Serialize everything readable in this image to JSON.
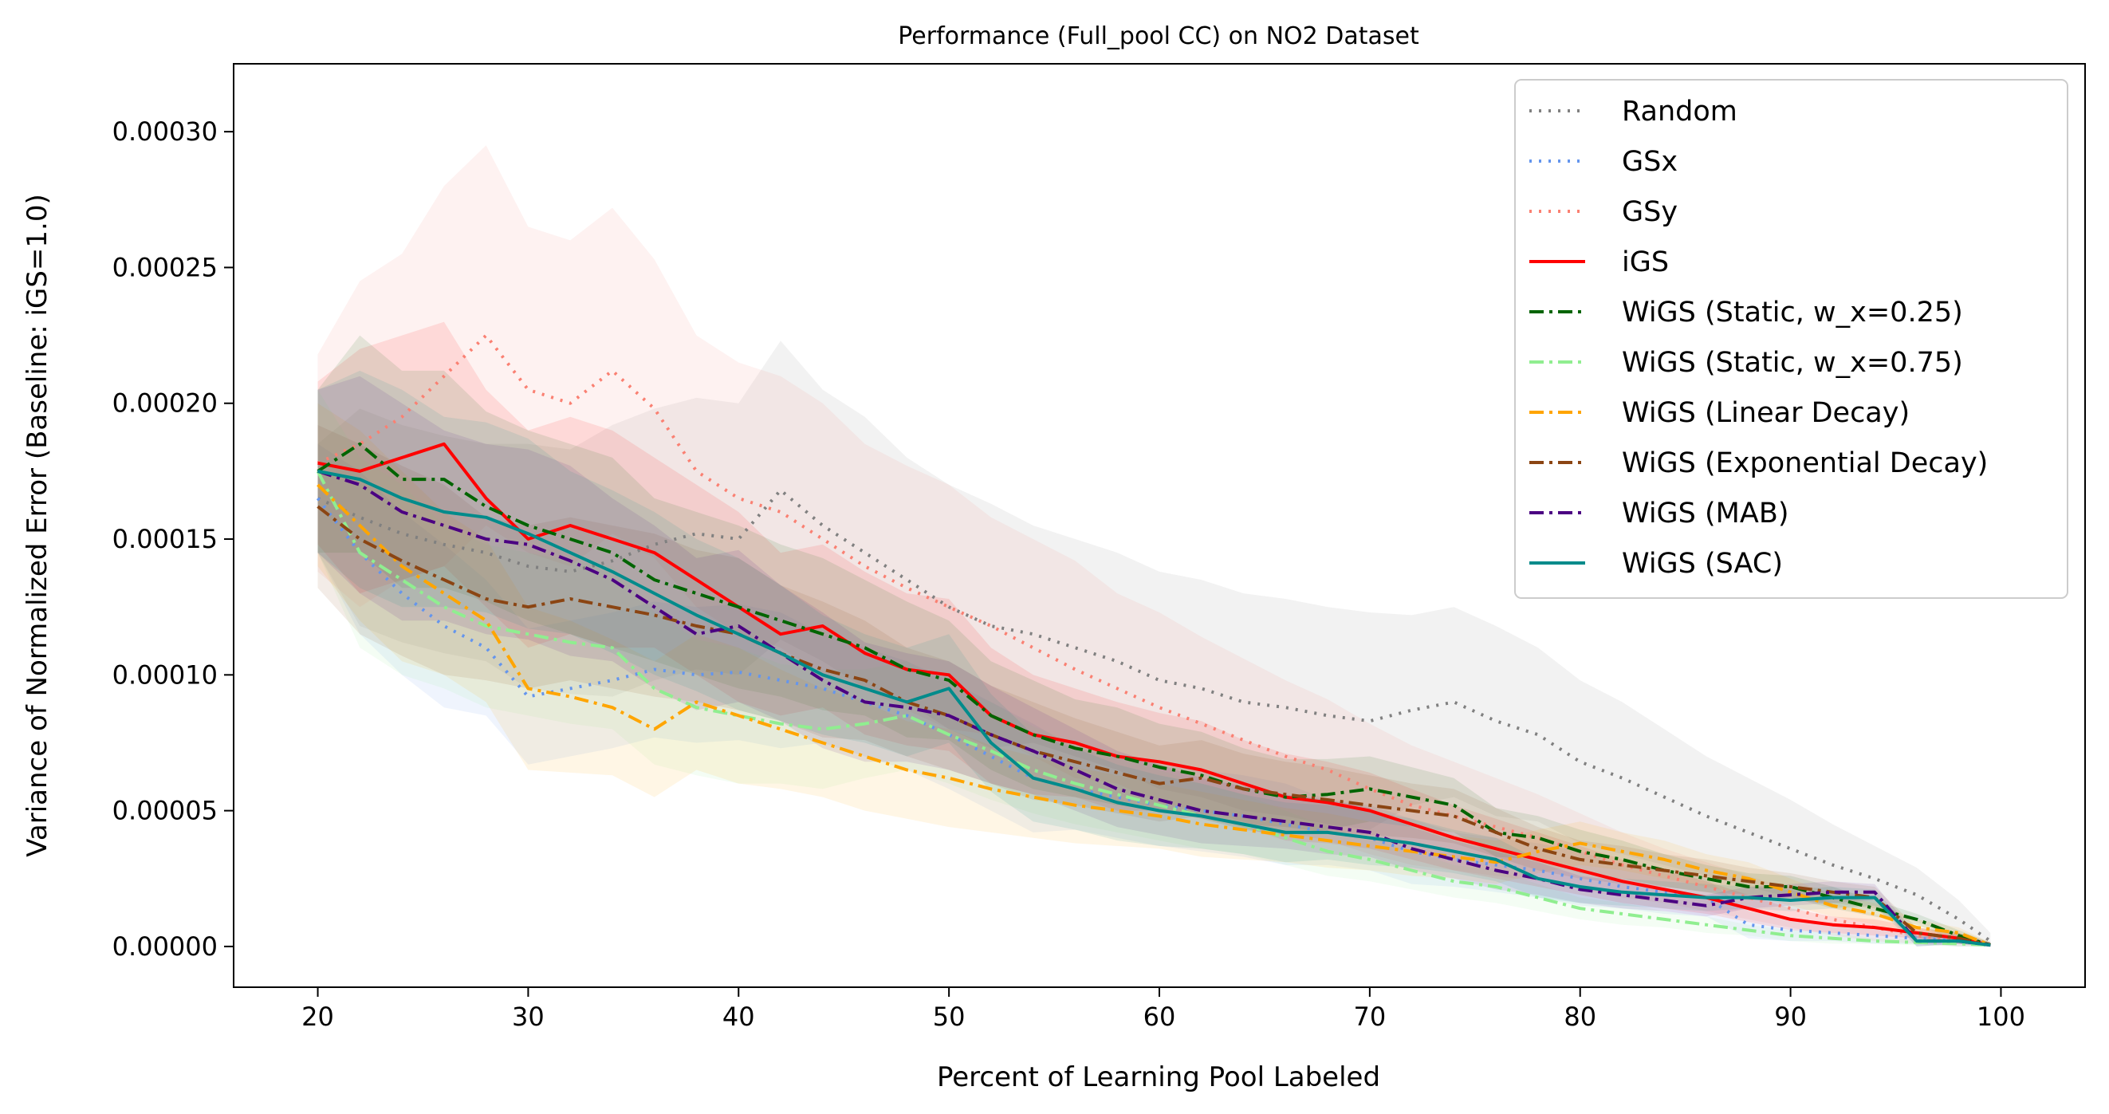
{
  "chart_data": {
    "type": "line",
    "title": "Performance (Full_pool CC) on NO2 Dataset",
    "xlabel": "Percent of Learning Pool Labeled",
    "ylabel": "Variance of Normalized Error (Baseline: iGS=1.0)",
    "xlim": [
      16,
      104
    ],
    "ylim": [
      -1.5e-05,
      0.000325
    ],
    "xticks": [
      "20",
      "30",
      "40",
      "50",
      "60",
      "70",
      "80",
      "90",
      "100"
    ],
    "xtick_values": [
      20,
      30,
      40,
      50,
      60,
      70,
      80,
      90,
      100
    ],
    "yticks": [
      "0.00000",
      "0.00005",
      "0.00010",
      "0.00015",
      "0.00020",
      "0.00025",
      "0.00030"
    ],
    "ytick_values": [
      0,
      5e-05,
      0.0001,
      0.00015,
      0.0002,
      0.00025,
      0.0003
    ],
    "grid": false,
    "legend_position": "top-right",
    "x": [
      20,
      22,
      24,
      26,
      28,
      30,
      32,
      34,
      36,
      38,
      40,
      42,
      44,
      46,
      48,
      50,
      52,
      54,
      56,
      58,
      60,
      62,
      64,
      66,
      68,
      70,
      72,
      74,
      76,
      78,
      80,
      82,
      84,
      86,
      88,
      90,
      92,
      94,
      96,
      98,
      99.5
    ],
    "series": [
      {
        "name": "Random",
        "color": "#808080",
        "dash": "dotted",
        "values": [
          0.000165,
          0.000158,
          0.000152,
          0.000148,
          0.000145,
          0.00014,
          0.000138,
          0.000142,
          0.000148,
          0.000152,
          0.00015,
          0.000168,
          0.000155,
          0.000145,
          0.000135,
          0.000125,
          0.000118,
          0.000115,
          0.00011,
          0.000105,
          9.8e-05,
          9.5e-05,
          9e-05,
          8.8e-05,
          8.5e-05,
          8.3e-05,
          8.7e-05,
          9e-05,
          8.3e-05,
          7.8e-05,
          6.8e-05,
          6.2e-05,
          5.5e-05,
          4.8e-05,
          4.2e-05,
          3.6e-05,
          3e-05,
          2.5e-05,
          1.9e-05,
          1e-05,
          2e-06
        ],
        "band": [
          2e-05,
          4e-05,
          4e-05,
          4e-05,
          4e-05,
          4.5e-05,
          4.5e-05,
          5e-05,
          5e-05,
          5e-05,
          5e-05,
          5.5e-05,
          5e-05,
          5e-05,
          4.5e-05,
          4.5e-05,
          4.5e-05,
          4e-05,
          4e-05,
          4e-05,
          4e-05,
          4e-05,
          4e-05,
          4e-05,
          4e-05,
          4e-05,
          3.5e-05,
          3.5e-05,
          3.5e-05,
          3.2e-05,
          3e-05,
          2.8e-05,
          2.5e-05,
          2.2e-05,
          2e-05,
          1.8e-05,
          1.5e-05,
          1.2e-05,
          1e-05,
          7e-06,
          3e-06
        ]
      },
      {
        "name": "GSx",
        "color": "#6495ed",
        "dash": "dotted",
        "values": [
          0.000165,
          0.000145,
          0.00013,
          0.000118,
          0.00011,
          9.2e-05,
          9.5e-05,
          9.8e-05,
          0.000102,
          0.0001,
          0.000101,
          9.8e-05,
          9.5e-05,
          9e-05,
          8.5e-05,
          7.8e-05,
          7e-05,
          6.2e-05,
          5.8e-05,
          5.5e-05,
          5.2e-05,
          5e-05,
          4.8e-05,
          4.5e-05,
          4.2e-05,
          4e-05,
          3.5e-05,
          3.2e-05,
          3e-05,
          2.8e-05,
          2.5e-05,
          2.2e-05,
          2e-05,
          1.8e-05,
          8e-06,
          6e-06,
          5e-06,
          4e-06,
          3e-06,
          2e-06,
          5e-07
        ],
        "band": [
          2e-05,
          3e-05,
          3e-05,
          3e-05,
          2.5e-05,
          2.5e-05,
          2.5e-05,
          2.5e-05,
          2.5e-05,
          2.5e-05,
          2.5e-05,
          2.5e-05,
          2e-05,
          2e-05,
          2e-05,
          2e-05,
          2e-05,
          2e-05,
          1.5e-05,
          1.5e-05,
          1.5e-05,
          1.5e-05,
          1.5e-05,
          1.5e-05,
          1.2e-05,
          1.2e-05,
          1.2e-05,
          1e-05,
          1e-05,
          1e-05,
          1e-05,
          8e-06,
          8e-06,
          7e-06,
          5e-06,
          4e-06,
          3e-06,
          3e-06,
          2e-06,
          2e-06,
          1e-06
        ]
      },
      {
        "name": "GSy",
        "color": "#fa8072",
        "dash": "dotted",
        "values": [
          0.000178,
          0.000185,
          0.000195,
          0.00021,
          0.000225,
          0.000205,
          0.0002,
          0.000212,
          0.000198,
          0.000175,
          0.000165,
          0.00016,
          0.00015,
          0.00014,
          0.000132,
          0.000125,
          0.000118,
          0.00011,
          0.000102,
          9.5e-05,
          8.8e-05,
          8.2e-05,
          7.6e-05,
          7e-05,
          6.5e-05,
          5.8e-05,
          5.2e-05,
          4.8e-05,
          4.4e-05,
          4e-05,
          3.5e-05,
          3e-05,
          2.6e-05,
          2.2e-05,
          1.8e-05,
          1.4e-05,
          1e-05,
          7e-06,
          4e-06,
          2e-06,
          5e-07
        ],
        "band": [
          4e-05,
          6e-05,
          6e-05,
          7e-05,
          7e-05,
          6e-05,
          6e-05,
          6e-05,
          5.5e-05,
          5e-05,
          5e-05,
          5e-05,
          5e-05,
          4.5e-05,
          4.5e-05,
          4.5e-05,
          4e-05,
          4e-05,
          4e-05,
          3.5e-05,
          3.5e-05,
          3.2e-05,
          3e-05,
          2.8e-05,
          2.6e-05,
          2.4e-05,
          2.2e-05,
          2e-05,
          1.8e-05,
          1.6e-05,
          1.4e-05,
          1.2e-05,
          1e-05,
          9e-06,
          8e-06,
          7e-06,
          6e-06,
          5e-06,
          3e-06,
          2e-06,
          1e-06
        ]
      },
      {
        "name": "iGS",
        "color": "#ff0000",
        "dash": "solid",
        "values": [
          0.000178,
          0.000175,
          0.00018,
          0.000185,
          0.000165,
          0.00015,
          0.000155,
          0.00015,
          0.000145,
          0.000135,
          0.000125,
          0.000115,
          0.000118,
          0.000108,
          0.000102,
          0.0001,
          8.5e-05,
          7.8e-05,
          7.5e-05,
          7e-05,
          6.8e-05,
          6.5e-05,
          6e-05,
          5.5e-05,
          5.3e-05,
          5e-05,
          4.5e-05,
          4e-05,
          3.6e-05,
          3.2e-05,
          2.8e-05,
          2.4e-05,
          2.1e-05,
          1.8e-05,
          1.4e-05,
          1e-05,
          8e-06,
          7e-06,
          5e-06,
          3e-06,
          5e-07
        ],
        "band": [
          3e-05,
          4.5e-05,
          4.5e-05,
          4.5e-05,
          4e-05,
          4e-05,
          4e-05,
          4e-05,
          3.5e-05,
          3.5e-05,
          3.5e-05,
          3e-05,
          3e-05,
          3e-05,
          2.8e-05,
          2.8e-05,
          2.5e-05,
          2.2e-05,
          2e-05,
          2e-05,
          1.8e-05,
          1.8e-05,
          1.6e-05,
          1.6e-05,
          1.5e-05,
          1.4e-05,
          1.3e-05,
          1.2e-05,
          1.1e-05,
          1e-05,
          9e-06,
          8e-06,
          7e-06,
          6e-06,
          5e-06,
          4e-06,
          3e-06,
          3e-06,
          2e-06,
          2e-06,
          1e-06
        ]
      },
      {
        "name": "WiGS (Static, w_x=0.25)",
        "color": "#006400",
        "dash": "dashdot",
        "values": [
          0.000175,
          0.000185,
          0.000172,
          0.000172,
          0.000162,
          0.000155,
          0.00015,
          0.000145,
          0.000135,
          0.00013,
          0.000125,
          0.00012,
          0.000115,
          0.00011,
          0.000102,
          9.8e-05,
          8.5e-05,
          7.8e-05,
          7.3e-05,
          7e-05,
          6.6e-05,
          6.3e-05,
          5.8e-05,
          5.5e-05,
          5.6e-05,
          5.8e-05,
          5.5e-05,
          5.2e-05,
          4.2e-05,
          4e-05,
          3.5e-05,
          3.2e-05,
          2.8e-05,
          2.5e-05,
          2.2e-05,
          2.2e-05,
          1.8e-05,
          1.4e-05,
          1e-05,
          4e-06,
          5e-07
        ],
        "band": [
          3e-05,
          4e-05,
          4e-05,
          4e-05,
          3.5e-05,
          3.5e-05,
          3.5e-05,
          3.5e-05,
          3e-05,
          3e-05,
          3e-05,
          2.8e-05,
          2.8e-05,
          2.5e-05,
          2.5e-05,
          2.2e-05,
          2e-05,
          2e-05,
          1.8e-05,
          1.8e-05,
          1.6e-05,
          1.6e-05,
          1.5e-05,
          1.4e-05,
          1.3e-05,
          1.2e-05,
          1.1e-05,
          1e-05,
          9e-06,
          8e-06,
          8e-06,
          7e-06,
          6e-06,
          5e-06,
          5e-06,
          4e-06,
          4e-06,
          3e-06,
          2e-06,
          2e-06,
          1e-06
        ]
      },
      {
        "name": "WiGS (Static, w_x=0.75)",
        "color": "#90ee90",
        "dash": "dashdot",
        "values": [
          0.000175,
          0.000145,
          0.000135,
          0.000125,
          0.000118,
          0.000115,
          0.000112,
          0.00011,
          9.5e-05,
          8.8e-05,
          8.5e-05,
          8.2e-05,
          8e-05,
          8.2e-05,
          8.5e-05,
          7.8e-05,
          7.2e-05,
          6.5e-05,
          6e-05,
          5.6e-05,
          5.2e-05,
          4.8e-05,
          4.5e-05,
          4e-05,
          3.5e-05,
          3.2e-05,
          2.8e-05,
          2.4e-05,
          2.2e-05,
          1.8e-05,
          1.4e-05,
          1.2e-05,
          1e-05,
          8e-06,
          6e-06,
          4e-06,
          3e-06,
          2e-06,
          1.5e-06,
          1e-06,
          5e-07
        ],
        "band": [
          3e-05,
          3.5e-05,
          3.5e-05,
          3e-05,
          3e-05,
          3e-05,
          3e-05,
          3e-05,
          2.8e-05,
          2.5e-05,
          2.5e-05,
          2.2e-05,
          2.2e-05,
          2e-05,
          2e-05,
          1.8e-05,
          1.8e-05,
          1.6e-05,
          1.5e-05,
          1.4e-05,
          1.3e-05,
          1.2e-05,
          1.1e-05,
          1e-05,
          9e-06,
          8e-06,
          7e-06,
          6e-06,
          6e-06,
          5e-06,
          4e-06,
          4e-06,
          3e-06,
          3e-06,
          2e-06,
          2e-06,
          2e-06,
          1e-06,
          1e-06,
          1e-06,
          5e-07
        ]
      },
      {
        "name": "WiGS (Linear Decay)",
        "color": "#ffa500",
        "dash": "dashdot",
        "values": [
          0.00017,
          0.000155,
          0.00014,
          0.00013,
          0.00012,
          9.5e-05,
          9.2e-05,
          8.8e-05,
          8e-05,
          9e-05,
          8.5e-05,
          8e-05,
          7.5e-05,
          7e-05,
          6.5e-05,
          6.2e-05,
          5.8e-05,
          5.5e-05,
          5.2e-05,
          5e-05,
          4.8e-05,
          4.5e-05,
          4.3e-05,
          4.1e-05,
          3.9e-05,
          3.7e-05,
          3.5e-05,
          3.3e-05,
          3.1e-05,
          3.5e-05,
          3.8e-05,
          3.5e-05,
          3.2e-05,
          2.8e-05,
          2.5e-05,
          2e-05,
          1.5e-05,
          1.2e-05,
          7e-06,
          5e-06,
          5e-07
        ],
        "band": [
          3e-05,
          3.5e-05,
          3.5e-05,
          3e-05,
          3e-05,
          3e-05,
          2.8e-05,
          2.5e-05,
          2.5e-05,
          2.5e-05,
          2.5e-05,
          2.2e-05,
          2e-05,
          2e-05,
          1.8e-05,
          1.8e-05,
          1.6e-05,
          1.5e-05,
          1.4e-05,
          1.3e-05,
          1.2e-05,
          1.2e-05,
          1.1e-05,
          1e-05,
          1e-05,
          9e-06,
          9e-06,
          8e-06,
          8e-06,
          8e-06,
          8e-06,
          7e-06,
          7e-06,
          6e-06,
          6e-06,
          5e-06,
          4e-06,
          4e-06,
          3e-06,
          2e-06,
          1e-06
        ]
      },
      {
        "name": "WiGS (Exponential Decay)",
        "color": "#8b4513",
        "dash": "dashdot",
        "values": [
          0.000162,
          0.00015,
          0.000142,
          0.000135,
          0.000128,
          0.000125,
          0.000128,
          0.000125,
          0.000122,
          0.000118,
          0.000115,
          0.000108,
          0.000102,
          9.8e-05,
          9e-05,
          8.5e-05,
          7.8e-05,
          7.2e-05,
          6.8e-05,
          6.4e-05,
          6e-05,
          6.2e-05,
          5.8e-05,
          5.6e-05,
          5.4e-05,
          5.2e-05,
          5e-05,
          4.8e-05,
          4.2e-05,
          3.6e-05,
          3.2e-05,
          3e-05,
          2.8e-05,
          2.6e-05,
          2.4e-05,
          2.2e-05,
          2e-05,
          1.8e-05,
          5e-06,
          3e-06,
          5e-07
        ],
        "band": [
          3e-05,
          3.5e-05,
          3.5e-05,
          3.5e-05,
          3e-05,
          3e-05,
          3e-05,
          3e-05,
          3e-05,
          2.8e-05,
          2.8e-05,
          2.5e-05,
          2.5e-05,
          2.2e-05,
          2e-05,
          2e-05,
          1.8e-05,
          1.8e-05,
          1.6e-05,
          1.5e-05,
          1.4e-05,
          1.4e-05,
          1.3e-05,
          1.2e-05,
          1.2e-05,
          1.1e-05,
          1e-05,
          1e-05,
          9e-06,
          8e-06,
          7e-06,
          7e-06,
          6e-06,
          6e-06,
          5e-06,
          5e-06,
          4e-06,
          4e-06,
          2e-06,
          2e-06,
          1e-06
        ]
      },
      {
        "name": "WiGS (MAB)",
        "color": "#4b0082",
        "dash": "dashdot",
        "values": [
          0.000175,
          0.00017,
          0.00016,
          0.000155,
          0.00015,
          0.000148,
          0.000142,
          0.000135,
          0.000125,
          0.000115,
          0.000118,
          0.000108,
          9.8e-05,
          9e-05,
          8.8e-05,
          8.5e-05,
          7.8e-05,
          7.2e-05,
          6.5e-05,
          5.8e-05,
          5.4e-05,
          5e-05,
          4.8e-05,
          4.6e-05,
          4.4e-05,
          4.2e-05,
          3.6e-05,
          3.2e-05,
          2.8e-05,
          2.5e-05,
          2.1e-05,
          1.9e-05,
          1.7e-05,
          1.5e-05,
          1.8e-05,
          1.9e-05,
          2e-05,
          2e-05,
          2e-06,
          2e-06,
          5e-07
        ],
        "band": [
          3e-05,
          4e-05,
          4e-05,
          3.5e-05,
          3.5e-05,
          3.5e-05,
          3.5e-05,
          3e-05,
          3e-05,
          2.8e-05,
          2.8e-05,
          2.5e-05,
          2.5e-05,
          2.2e-05,
          2e-05,
          2e-05,
          1.8e-05,
          1.6e-05,
          1.5e-05,
          1.4e-05,
          1.3e-05,
          1.2e-05,
          1.1e-05,
          1e-05,
          1e-05,
          9e-06,
          8e-06,
          7e-06,
          7e-06,
          6e-06,
          5e-06,
          5e-06,
          4e-06,
          4e-06,
          4e-06,
          4e-06,
          4e-06,
          3e-06,
          2e-06,
          1e-06,
          1e-06
        ]
      },
      {
        "name": "WiGS (SAC)",
        "color": "#008b8b",
        "dash": "solid",
        "values": [
          0.000175,
          0.000172,
          0.000165,
          0.00016,
          0.000158,
          0.000152,
          0.000145,
          0.000138,
          0.00013,
          0.000122,
          0.000115,
          0.000108,
          0.0001,
          9.5e-05,
          9e-05,
          9.5e-05,
          7.5e-05,
          6.2e-05,
          5.8e-05,
          5.3e-05,
          5e-05,
          4.8e-05,
          4.5e-05,
          4.2e-05,
          4.2e-05,
          4e-05,
          3.8e-05,
          3.5e-05,
          3.2e-05,
          2.5e-05,
          2.2e-05,
          2e-05,
          1.9e-05,
          1.8e-05,
          1.8e-05,
          1.7e-05,
          1.8e-05,
          1.8e-05,
          2e-06,
          2e-06,
          5e-07
        ],
        "band": [
          3e-05,
          4e-05,
          4e-05,
          3.5e-05,
          3.5e-05,
          3.5e-05,
          3e-05,
          3e-05,
          3e-05,
          2.8e-05,
          2.8e-05,
          2.5e-05,
          2.2e-05,
          2e-05,
          2e-05,
          2e-05,
          1.8e-05,
          1.6e-05,
          1.5e-05,
          1.4e-05,
          1.3e-05,
          1.2e-05,
          1.1e-05,
          1.1e-05,
          1e-05,
          1e-05,
          9e-06,
          8e-06,
          8e-06,
          7e-06,
          6e-06,
          5e-06,
          5e-06,
          5e-06,
          4e-06,
          4e-06,
          4e-06,
          3e-06,
          2e-06,
          1e-06,
          1e-06
        ]
      }
    ]
  }
}
